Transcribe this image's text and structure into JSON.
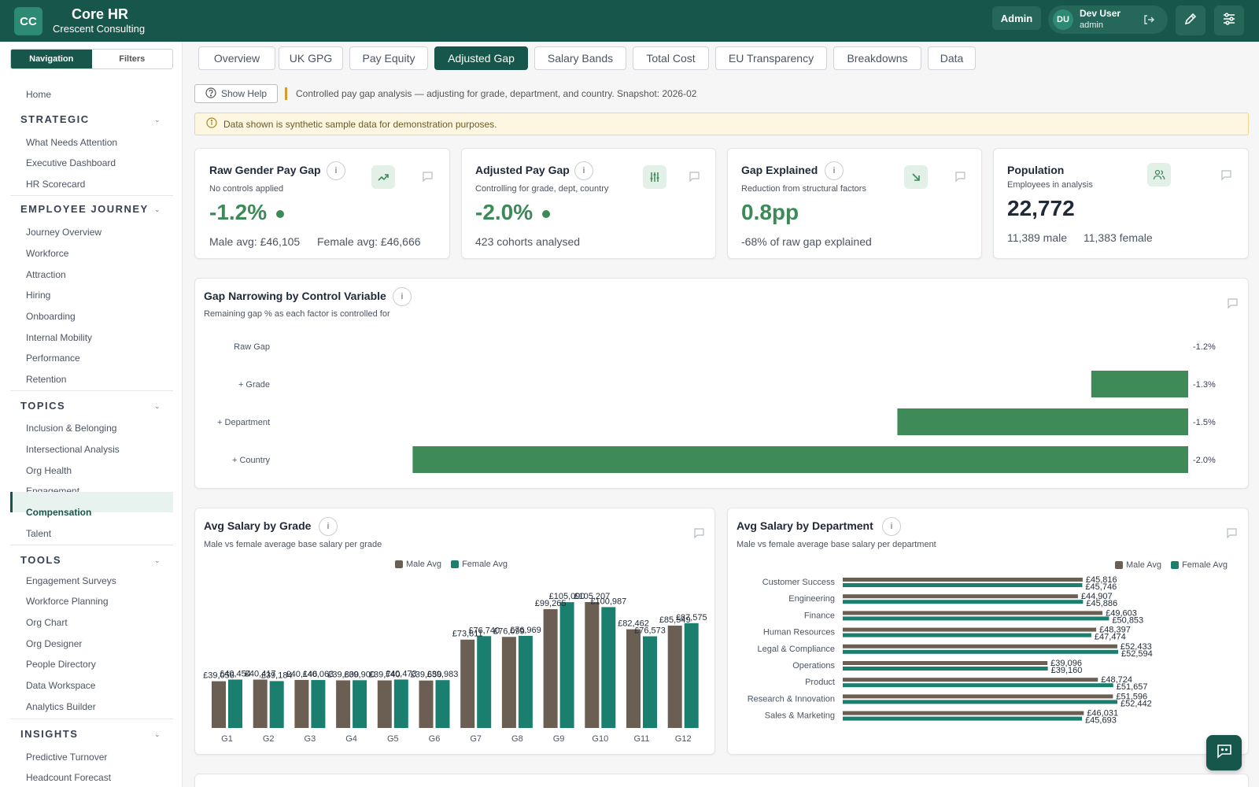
{
  "app": {
    "logo": "CC",
    "title": "Core HR",
    "subtitle": "Crescent Consulting",
    "admin_label": "Admin",
    "user_initials": "DU",
    "user_name": "Dev User",
    "user_role": "admin"
  },
  "sidebar": {
    "toggle": [
      "Navigation",
      "Filters"
    ],
    "home": "Home",
    "sections": [
      {
        "title": "STRATEGIC",
        "items": [
          "What Needs Attention",
          "Executive Dashboard",
          "HR Scorecard"
        ]
      },
      {
        "title": "EMPLOYEE JOURNEY",
        "items": [
          "Journey Overview",
          "Workforce",
          "Attraction",
          "Hiring",
          "Onboarding",
          "Internal Mobility",
          "Performance",
          "Retention"
        ]
      },
      {
        "title": "TOPICS",
        "items": [
          "Inclusion & Belonging",
          "Intersectional Analysis",
          "Org Health",
          "Engagement",
          "Compensation",
          "Talent"
        ]
      },
      {
        "title": "TOOLS",
        "items": [
          "Engagement Surveys",
          "Workforce Planning",
          "Org Chart",
          "Org Designer",
          "People Directory",
          "Data Workspace",
          "Analytics Builder"
        ]
      },
      {
        "title": "INSIGHTS",
        "items": [
          "Predictive Turnover",
          "Headcount Forecast"
        ]
      }
    ],
    "active_item": "Compensation"
  },
  "tabs": [
    "Overview",
    "UK GPG",
    "Pay Equity",
    "Adjusted Gap",
    "Salary Bands",
    "Total Cost",
    "EU Transparency",
    "Breakdowns",
    "Data"
  ],
  "active_tab": "Adjusted Gap",
  "help": {
    "button": "Show Help",
    "text": "Controlled pay gap analysis — adjusting for grade, department, and country. Snapshot: 2026-02"
  },
  "notice": "Data shown is synthetic sample data for demonstration purposes.",
  "kpis": [
    {
      "title": "Raw Gender Pay Gap",
      "sub": "No controls applied",
      "value": "-1.2%",
      "foot_a": "Male avg: £46,105",
      "foot_b": "Female avg: £46,666",
      "icon": "trend-up-icon",
      "status": "good"
    },
    {
      "title": "Adjusted Pay Gap",
      "sub": "Controlling for grade, dept, country",
      "value": "-2.0%",
      "foot_a": "423 cohorts analysed",
      "foot_b": "",
      "icon": "sliders-icon",
      "status": "good"
    },
    {
      "title": "Gap Explained",
      "sub": "Reduction from structural factors",
      "value": "0.8pp",
      "foot_a": "-68% of raw gap explained",
      "foot_b": "",
      "icon": "arrow-down-right-icon"
    },
    {
      "title": "Population",
      "sub": "Employees in analysis",
      "value": "22,772",
      "foot_a": "11,389 male",
      "foot_b": "11,383 female",
      "icon": "users-icon"
    }
  ],
  "colors": {
    "brand": "#17564a",
    "good": "#3c8a58",
    "male": "#6b5e52",
    "female": "#1a7f6e",
    "bar": "#3f8b58"
  },
  "charts": {
    "narrowing": {
      "title": "Gap Narrowing by Control Variable",
      "subtitle": "Remaining gap % as each factor is controlled for"
    },
    "grade": {
      "title": "Avg Salary by Grade",
      "subtitle": "Male vs female average base salary per grade"
    },
    "dept": {
      "title": "Avg Salary by Department",
      "subtitle": "Male vs female average base salary per department"
    },
    "legend": {
      "male": "Male Avg",
      "female": "Female Avg"
    }
  },
  "chart_data": [
    {
      "type": "bar",
      "orientation": "horizontal",
      "categories": [
        "Raw Gap",
        "+ Grade",
        "+ Department",
        "+ Country"
      ],
      "values": [
        -1.2,
        -1.3,
        -1.5,
        -2.0
      ],
      "labels": [
        "-1.2%",
        "-1.3%",
        "-1.5%",
        "-2.0%"
      ],
      "bar_baseline": -1.2,
      "title": "Gap Narrowing by Control Variable"
    },
    {
      "type": "bar",
      "categories": [
        "G1",
        "G2",
        "G3",
        "G4",
        "G5",
        "G6",
        "G7",
        "G8",
        "G9",
        "G10",
        "G11",
        "G12"
      ],
      "series": [
        {
          "name": "Male Avg",
          "values": [
            39056,
            40417,
            40146,
            39800,
            39740,
            39650,
            73811,
            76099,
            99265,
            105207,
            82462,
            85549
          ]
        },
        {
          "name": "Female Avg",
          "values": [
            40454,
            39184,
            40063,
            39900,
            40473,
            39983,
            76740,
            76969,
            105090,
            100987,
            76573,
            87575
          ]
        }
      ],
      "value_labels": {
        "Male Avg": [
          "£39,056",
          "£40,417",
          "£40,146",
          "£39,800",
          "£39,740",
          "£39,650",
          "£73,811",
          "£76,099",
          "£99,265",
          "£105,207",
          "£82,462",
          "£85,549"
        ],
        "Female Avg": [
          "£40,454",
          "£39,184",
          "£40,063",
          "£39,900",
          "£40,473",
          "£39,983",
          "£76,740",
          "£76,969",
          "£105,090",
          "£100,987",
          "£76,573",
          "£87,575"
        ]
      },
      "ylim": [
        0,
        110000
      ],
      "title": "Avg Salary by Grade"
    },
    {
      "type": "bar",
      "orientation": "horizontal",
      "categories": [
        "Customer Success",
        "Engineering",
        "Finance",
        "Human Resources",
        "Legal & Compliance",
        "Operations",
        "Product",
        "Research & Innovation",
        "Sales & Marketing"
      ],
      "series": [
        {
          "name": "Male Avg",
          "values": [
            45816,
            44907,
            49603,
            48397,
            52433,
            39096,
            48724,
            51596,
            46031
          ]
        },
        {
          "name": "Female Avg",
          "values": [
            45746,
            45886,
            50853,
            47474,
            52594,
            39160,
            51657,
            52442,
            45693
          ]
        }
      ],
      "value_labels": {
        "Male Avg": [
          "£45,816",
          "£44,907",
          "£49,603",
          "£48,397",
          "£52,433",
          "£39,096",
          "£48,724",
          "£51,596",
          "£46,031"
        ],
        "Female Avg": [
          "£45,746",
          "£45,886",
          "£50,853",
          "£47,474",
          "£52,594",
          "£39,160",
          "£51,657",
          "£52,442",
          "£45,693"
        ]
      },
      "xlim": [
        0,
        56000
      ],
      "title": "Avg Salary by Department"
    }
  ]
}
